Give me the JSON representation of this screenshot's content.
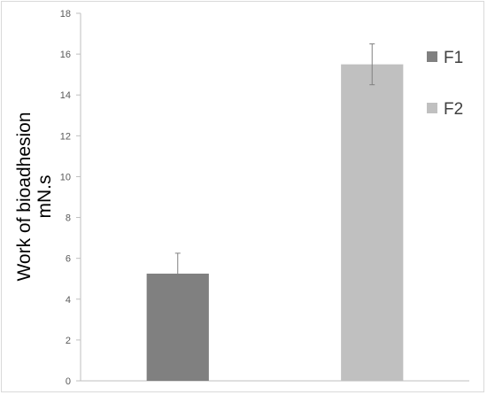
{
  "chart_data": {
    "type": "bar",
    "categories": [
      "F1",
      "F2"
    ],
    "values": [
      5.25,
      15.5
    ],
    "errors": [
      1.0,
      1.0
    ],
    "colors": [
      "#808080",
      "#c0c0c0"
    ],
    "error_bar_color": "#808080",
    "ylabel_line1": "Work of bioadhesion",
    "ylabel_line2": "mN.s",
    "ylim": [
      0,
      18
    ],
    "yticks": [
      0,
      2,
      4,
      6,
      8,
      10,
      12,
      14,
      16,
      18
    ],
    "grid": false,
    "legend": {
      "position": "right",
      "entries": [
        {
          "label": "F1",
          "color": "#808080"
        },
        {
          "label": "F2",
          "color": "#c0c0c0"
        }
      ]
    }
  }
}
